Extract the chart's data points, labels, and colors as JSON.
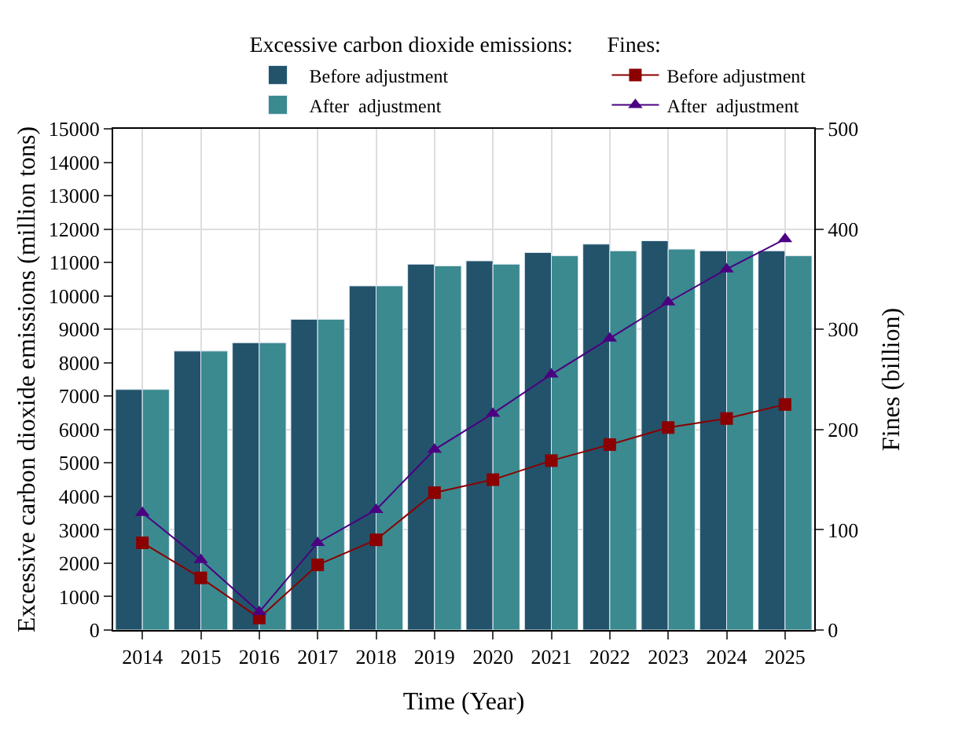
{
  "chart_data": {
    "type": "bar",
    "xlabel": "Time (Year)",
    "ylabel": "Excessive carbon dioxide emissions (million tons)",
    "y2label": "Fines (billion)",
    "legend_title": [
      "Excessive carbon dioxide emissions:",
      "Fines:"
    ],
    "categories": [
      "2014",
      "2015",
      "2016",
      "2017",
      "2018",
      "2019",
      "2020",
      "2021",
      "2022",
      "2023",
      "2024",
      "2025"
    ],
    "series": [
      {
        "name": "Before adjustment",
        "color": "#22536b",
        "values": [
          7200,
          8350,
          8600,
          9300,
          10300,
          10950,
          11050,
          11300,
          11550,
          11650,
          11350,
          11350
        ]
      },
      {
        "name": "After  adjustment",
        "color": "#3a8a8f",
        "values": [
          7200,
          8350,
          8600,
          9300,
          10300,
          10900,
          10950,
          11200,
          11350,
          11400,
          11350,
          11200
        ]
      },
      {
        "name": "Before adjustment",
        "type": "line",
        "axis": "y2",
        "marker": "square",
        "color": "#8b0000",
        "values": [
          87,
          52,
          12,
          65,
          90,
          137,
          150,
          169,
          185,
          202,
          211,
          225
        ]
      },
      {
        "name": "After  adjustment",
        "type": "line",
        "axis": "y2",
        "marker": "triangle",
        "color": "#4b0082",
        "values": [
          117,
          70,
          18,
          87,
          120,
          180,
          216,
          255,
          291,
          327,
          360,
          390
        ]
      }
    ],
    "ylim": [
      0,
      15000
    ],
    "yticks": [
      0,
      1000,
      2000,
      3000,
      4000,
      5000,
      6000,
      7000,
      8000,
      9000,
      10000,
      11000,
      12000,
      13000,
      14000,
      15000
    ],
    "y2lim": [
      0,
      500
    ],
    "y2ticks": [
      0,
      100,
      200,
      300,
      400,
      500
    ],
    "grid": true,
    "legend": "top right"
  }
}
